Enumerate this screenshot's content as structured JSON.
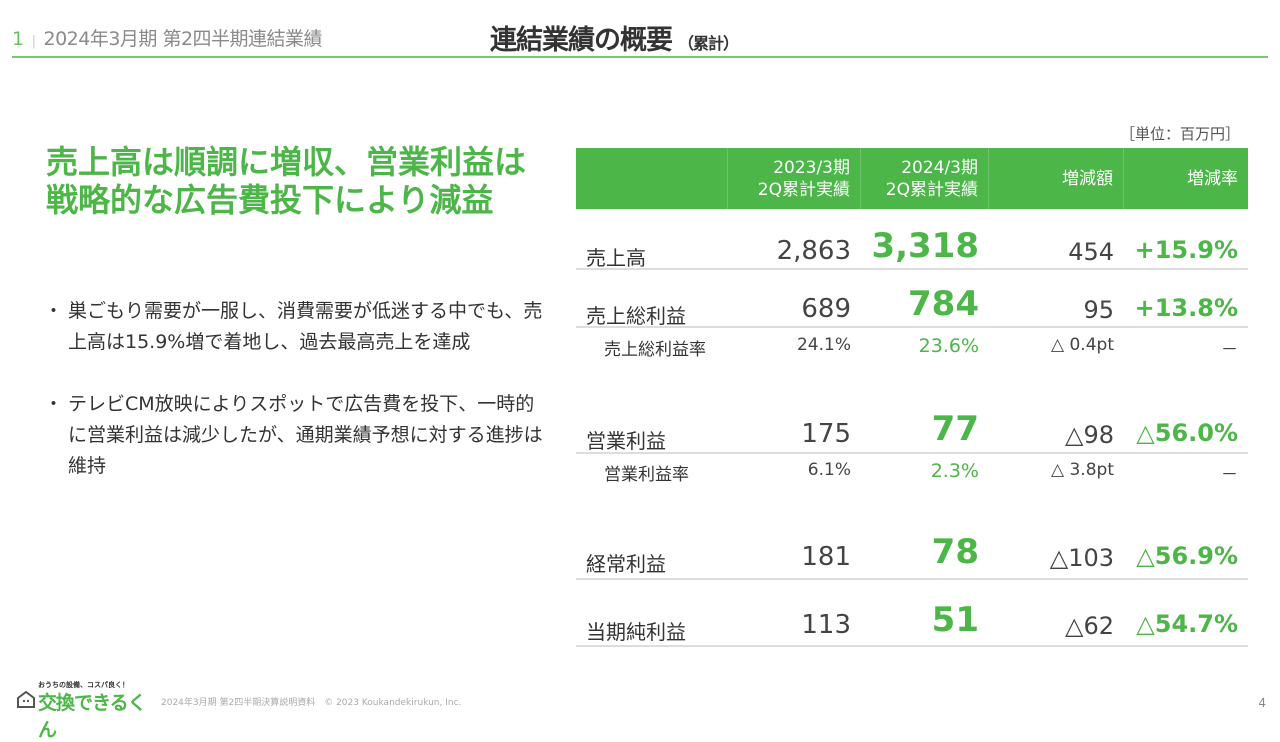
{
  "header": {
    "page_num": "1",
    "section": "2024年3月期 第2四半期連結業績",
    "title": "連結業績の概要",
    "title_sub": "（累計）"
  },
  "headline": "売上高は順調に増収、営業利益は戦略的な広告費投下により減益",
  "bullets": [
    "巣ごもり需要が一服し、消費需要が低迷する中でも、売上高は15.9%増で着地し、過去最高売上を達成",
    "テレビCM放映によりスポットで広告費を投下、一時的に営業利益は減少したが、通期業績予想に対する進捗は維持"
  ],
  "table": {
    "unit": "［単位：百万円］",
    "columns": [
      "2023/3期\n2Q累計実績",
      "2024/3期\n2Q累計実績",
      "増減額",
      "増減率"
    ],
    "rows": [
      {
        "label": "売上高",
        "prev": "2,863",
        "curr": "3,318",
        "diff": "454",
        "rate": "+15.9%"
      },
      {
        "label": "売上総利益",
        "prev": "689",
        "curr": "784",
        "diff": "95",
        "rate": "+13.8%"
      },
      {
        "label": "売上総利益率",
        "prev": "24.1%",
        "curr": "23.6%",
        "diff": "△ 0.4pt",
        "rate": "－"
      },
      {
        "label": "営業利益",
        "prev": "175",
        "curr": "77",
        "diff": "△98",
        "rate": "△56.0%"
      },
      {
        "label": "営業利益率",
        "prev": "6.1%",
        "curr": "2.3%",
        "diff": "△ 3.8pt",
        "rate": "－"
      },
      {
        "label": "経常利益",
        "prev": "181",
        "curr": "78",
        "diff": "△103",
        "rate": "△56.9%"
      },
      {
        "label": "当期純利益",
        "prev": "113",
        "curr": "51",
        "diff": "△62",
        "rate": "△54.7%"
      }
    ]
  },
  "footer": {
    "logo_tagline": "おうちの設備、コスパ良く！",
    "logo_name": "交換できるくん",
    "doc": "2024年3月期 第2四半期決算説明資料　© 2023 Koukandekirukun, Inc.",
    "page": "4"
  },
  "colors": {
    "accent": "#4cb648"
  }
}
